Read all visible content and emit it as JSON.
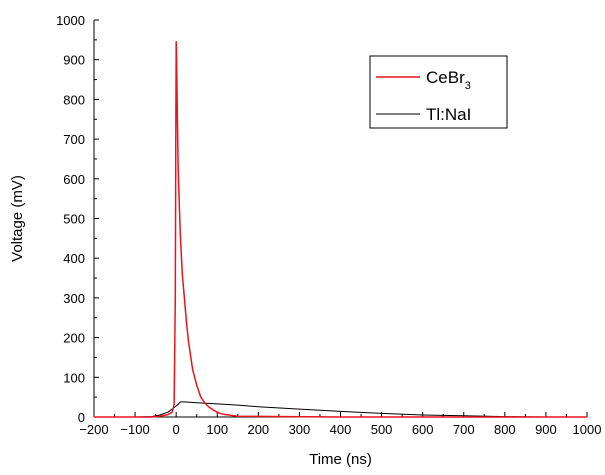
{
  "chart_data": {
    "type": "line",
    "title": "",
    "xlabel": "Time (ns)",
    "ylabel": "Voltage (mV)",
    "xlim": [
      -200,
      1000
    ],
    "ylim": [
      0,
      1000
    ],
    "x_ticks": [
      -200,
      -100,
      0,
      100,
      200,
      300,
      400,
      500,
      600,
      700,
      800,
      900,
      1000
    ],
    "y_ticks": [
      0,
      100,
      200,
      300,
      400,
      500,
      600,
      700,
      800,
      900,
      1000
    ],
    "x_tick_labels": [
      "−200",
      "−100",
      "0",
      "100",
      "200",
      "300",
      "400",
      "500",
      "600",
      "700",
      "800",
      "900",
      "1000"
    ],
    "y_tick_labels": [
      "0",
      "100",
      "200",
      "300",
      "400",
      "500",
      "600",
      "700",
      "800",
      "900",
      "1000"
    ],
    "grid": false,
    "legend_position": "top-right",
    "series": [
      {
        "name": "CeBr3",
        "legend_base": "CeBr",
        "legend_sub": "3",
        "color": "#e8141c",
        "x": [
          -200,
          -100,
          -60,
          -40,
          -20,
          -10,
          -5,
          -2,
          -1,
          0,
          1,
          2,
          3,
          5,
          8,
          10,
          15,
          20,
          25,
          30,
          40,
          50,
          60,
          70,
          80,
          90,
          100,
          110,
          120,
          130,
          140,
          150,
          400,
          1000
        ],
        "y": [
          0,
          0,
          0,
          2,
          6,
          12,
          30,
          300,
          700,
          945,
          900,
          820,
          750,
          620,
          520,
          460,
          360,
          300,
          240,
          190,
          120,
          80,
          50,
          35,
          25,
          18,
          12,
          8,
          6,
          5,
          3,
          2,
          0,
          0
        ]
      },
      {
        "name": "Tl:NaI",
        "legend_label": "Tl:NaI",
        "color": "#000000",
        "x": [
          -200,
          -100,
          -60,
          -40,
          -20,
          -10,
          0,
          5,
          10,
          20,
          50,
          100,
          150,
          200,
          300,
          400,
          500,
          600,
          700,
          800,
          900,
          1000
        ],
        "y": [
          0,
          0,
          1,
          5,
          12,
          20,
          28,
          32,
          38,
          38,
          36,
          33,
          30,
          26,
          20,
          14,
          9,
          5,
          3,
          1,
          0,
          0
        ]
      }
    ]
  }
}
